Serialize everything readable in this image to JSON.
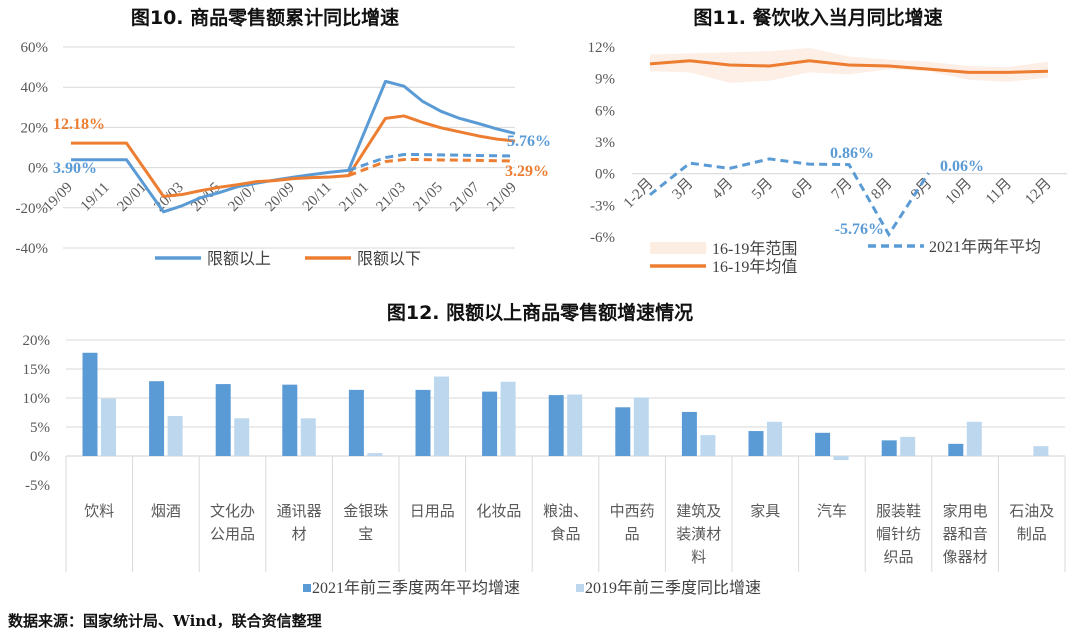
{
  "colors": {
    "blue": "#5b9bd5",
    "orange": "#ed7d31",
    "light_blue": "#bdd7ee",
    "range_fill": "#fbe5d6",
    "grid": "#d9d9d9"
  },
  "chart_data": [
    {
      "type": "line",
      "title": "图10. 商品零售额累计同比增速",
      "x": [
        "19/09",
        "19/10",
        "19/11",
        "19/12",
        "20/01",
        "20/02",
        "20/03",
        "20/04",
        "20/05",
        "20/06",
        "20/07",
        "20/08",
        "20/09",
        "20/10",
        "20/11",
        "20/12",
        "21/01",
        "21/02",
        "21/03",
        "21/04",
        "21/05",
        "21/06",
        "21/07",
        "21/08",
        "21/09"
      ],
      "x_tick_labels": [
        "19/09",
        "19/11",
        "20/01",
        "20/03",
        "20/05",
        "20/07",
        "20/09",
        "20/11",
        "21/01",
        "21/03",
        "21/05",
        "21/07",
        "21/09"
      ],
      "y_ticks": [
        "60%",
        "40%",
        "20%",
        "0%",
        "-20%",
        "-40%"
      ],
      "ylim": [
        -40,
        60
      ],
      "grid": true,
      "legend": "bottom",
      "series": [
        {
          "name": "限额以上",
          "style": "solid",
          "color": "#5b9bd5",
          "values": [
            3.9,
            3.9,
            3.9,
            3.9,
            null,
            -22,
            -19,
            -15,
            -12.5,
            -9.5,
            -7.8,
            -6.2,
            -4.8,
            -3.5,
            -2.3,
            -1.4,
            null,
            42.9,
            40.5,
            33,
            28,
            24.5,
            22,
            19.3,
            17
          ]
        },
        {
          "name": "限额以下",
          "style": "solid",
          "color": "#ed7d31",
          "values": [
            12.18,
            12.18,
            12.18,
            12.18,
            null,
            -14.3,
            -13.4,
            -11.5,
            -9.8,
            -8.5,
            -7,
            -6.5,
            -5.5,
            -5,
            -4.7,
            -4,
            null,
            24.5,
            25.7,
            22.5,
            19.8,
            17.8,
            15.8,
            14.2,
            13.2
          ]
        },
        {
          "style": "dashed",
          "color": "#5b9bd5",
          "values": [
            null,
            null,
            null,
            null,
            null,
            null,
            null,
            null,
            null,
            null,
            null,
            null,
            null,
            null,
            null,
            -1.4,
            null,
            5,
            6.5,
            6.5,
            6.3,
            6.2,
            6,
            5.9,
            5.76
          ]
        },
        {
          "style": "dashed",
          "color": "#ed7d31",
          "values": [
            null,
            null,
            null,
            null,
            null,
            null,
            null,
            null,
            null,
            null,
            null,
            null,
            null,
            null,
            null,
            -4,
            null,
            3,
            4,
            4,
            3.8,
            3.7,
            3.6,
            3.4,
            3.29
          ]
        }
      ],
      "annotations": [
        {
          "text": "12.18%",
          "color": "#ed7d31"
        },
        {
          "text": "3.90%",
          "color": "#5b9bd5"
        },
        {
          "text": "5.76%",
          "color": "#5b9bd5"
        },
        {
          "text": "3.29%",
          "color": "#ed7d31"
        }
      ]
    },
    {
      "type": "line",
      "title": "图11. 餐饮收入当月同比增速",
      "categories": [
        "1-2月",
        "3月",
        "4月",
        "5月",
        "6月",
        "7月",
        "8月",
        "9月",
        "10月",
        "11月",
        "12月"
      ],
      "y_ticks": [
        "12%",
        "9%",
        "6%",
        "3%",
        "0%",
        "-3%",
        "-6%"
      ],
      "ylim": [
        -6,
        12
      ],
      "legend": "bottom",
      "range": {
        "name": "16-19年范围",
        "upper": [
          11.3,
          11.4,
          11.5,
          11.6,
          11.9,
          11.1,
          10.8,
          10.6,
          10.2,
          10.1,
          10.6
        ],
        "lower": [
          9.7,
          9.6,
          8.6,
          8.8,
          9.6,
          9.4,
          9.9,
          9.7,
          8.9,
          8.7,
          9.1
        ]
      },
      "series": [
        {
          "name": "16-19年均值",
          "style": "solid",
          "color": "#ed7d31",
          "values": [
            10.4,
            10.7,
            10.3,
            10.2,
            10.7,
            10.3,
            10.2,
            9.9,
            9.6,
            9.6,
            9.7
          ]
        },
        {
          "name": "2021年两年平均",
          "style": "dashed",
          "color": "#5b9bd5",
          "values": [
            -2.0,
            1.0,
            0.5,
            1.4,
            0.9,
            0.86,
            -5.76,
            0.06,
            null,
            null,
            null
          ]
        }
      ],
      "annotations": [
        {
          "text": "0.86%"
        },
        {
          "text": "-5.76%"
        },
        {
          "text": "0.06%"
        }
      ]
    },
    {
      "type": "bar",
      "title": "图12. 限额以上商品零售额增速情况",
      "categories": [
        "饮料",
        "烟酒",
        "文化办公用品",
        "通讯器材",
        "金银珠宝",
        "日用品",
        "化妆品",
        "粮油、食品",
        "中西药品",
        "建筑及装潢材料",
        "家具",
        "汽车",
        "服装鞋帽针纺织品",
        "家用电器和音像器材",
        "石油及制品"
      ],
      "y_ticks": [
        "20%",
        "15%",
        "10%",
        "5%",
        "0%",
        "-5%"
      ],
      "ylim": [
        -5,
        20
      ],
      "legend": "bottom",
      "series": [
        {
          "name": "2021年前三季度两年平均增速",
          "color": "#5b9bd5",
          "values": [
            17.8,
            12.9,
            12.4,
            12.3,
            11.4,
            11.4,
            11.1,
            10.5,
            8.4,
            7.6,
            4.3,
            4.0,
            2.7,
            2.1,
            null
          ]
        },
        {
          "name": "2019年前三季度同比增速",
          "color": "#bdd7ee",
          "values": [
            9.9,
            6.9,
            6.5,
            6.5,
            0.5,
            13.7,
            12.8,
            10.6,
            10.1,
            3.6,
            5.9,
            -0.7,
            3.3,
            5.9,
            1.7
          ]
        }
      ]
    }
  ],
  "source": "数据来源：国家统计局、Wind，联合资信整理"
}
